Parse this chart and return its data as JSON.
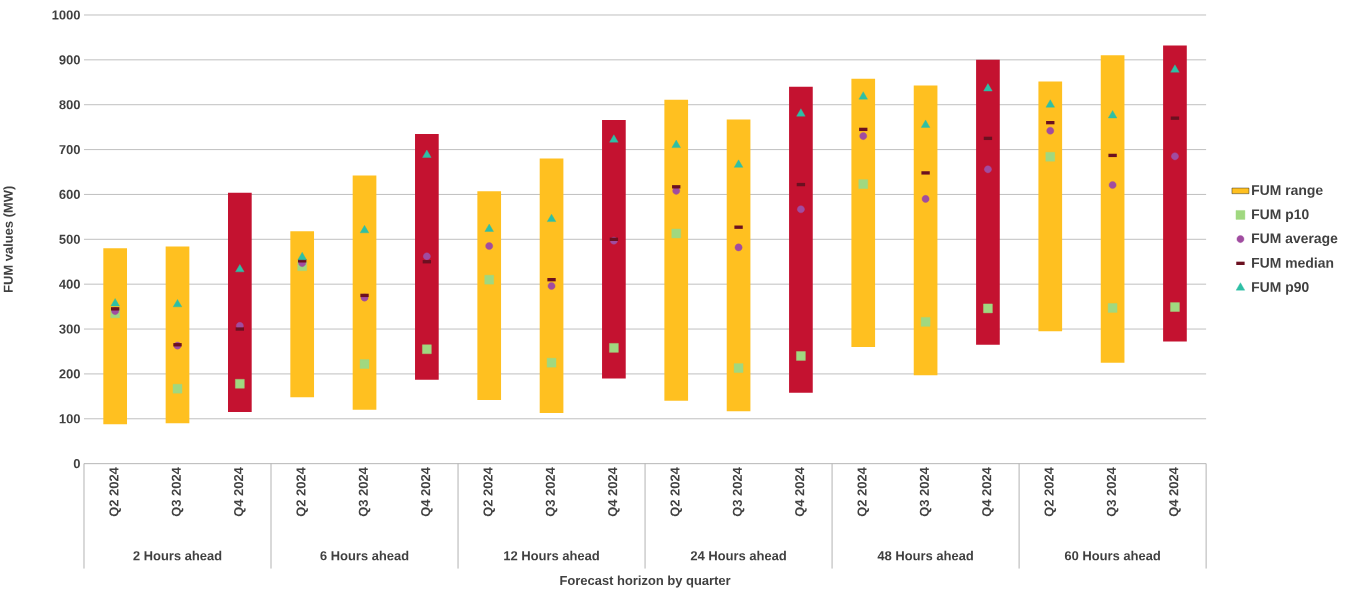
{
  "chart_data": {
    "type": "bar",
    "xlabel": "Forecast horizon by quarter",
    "ylabel": "FUM values (MW)",
    "categories": [
      "Q2 2024",
      "Q3 2024",
      "Q4 2024",
      "Q2 2024",
      "Q3 2024",
      "Q4 2024",
      "Q2 2024",
      "Q3 2024",
      "Q4 2024",
      "Q2 2024",
      "Q3 2024",
      "Q4 2024",
      "Q2 2024",
      "Q3 2024",
      "Q4 2024",
      "Q2 2024",
      "Q3 2024",
      "Q4 2024"
    ],
    "annotations": [
      "2 Hours ahead",
      "6 Hours ahead",
      "12 Hours ahead",
      "24 Hours ahead",
      "48 Hours ahead",
      "60 Hours ahead"
    ],
    "series": [
      {
        "name": "FUM range",
        "color": "#ffc020",
        "colors": [
          "#ffc020",
          "#ffc020",
          "#c41230",
          "#ffc020",
          "#ffc020",
          "#c41230",
          "#ffc020",
          "#ffc020",
          "#c41230",
          "#ffc020",
          "#ffc020",
          "#c41230",
          "#ffc020",
          "#ffc020",
          "#c41230",
          "#ffc020",
          "#ffc020",
          "#c41230"
        ],
        "base": [
          88,
          90,
          115,
          148,
          120,
          187,
          142,
          113,
          190,
          140,
          117,
          158,
          260,
          197,
          265,
          295,
          225,
          272
        ],
        "values": [
          392,
          394,
          489,
          370,
          522,
          548,
          465,
          567,
          576,
          671,
          650,
          682,
          598,
          646,
          635,
          557,
          685,
          660
        ]
      },
      {
        "name": "FUM p10",
        "type": "scatter",
        "marker": "square",
        "color": "#a0d880",
        "values": [
          335,
          167,
          178,
          440,
          222,
          255,
          410,
          225,
          258,
          513,
          213,
          240,
          623,
          316,
          346,
          684,
          347,
          349
        ]
      },
      {
        "name": "FUM average",
        "type": "scatter",
        "marker": "circle",
        "color": "#a04ca0",
        "values": [
          340,
          263,
          307,
          447,
          370,
          462,
          485,
          396,
          497,
          608,
          482,
          567,
          730,
          590,
          656,
          742,
          621,
          685
        ]
      },
      {
        "name": "FUM median",
        "type": "scatter",
        "color": "#6b1020",
        "values": [
          345,
          265,
          300,
          452,
          375,
          450,
          null,
          410,
          500,
          617,
          527,
          622,
          745,
          648,
          725,
          760,
          687,
          770
        ]
      },
      {
        "name": "FUM p90",
        "type": "scatter",
        "marker": "triangle",
        "color": "#2ebfa5",
        "values": [
          357,
          355,
          433,
          460,
          520,
          688,
          523,
          545,
          722,
          710,
          666,
          780,
          818,
          755,
          836,
          800,
          776,
          878
        ]
      }
    ],
    "ylim": [
      0,
      1000
    ],
    "yticks": [
      0,
      100,
      200,
      300,
      400,
      500,
      600,
      700,
      800,
      900,
      1000
    ],
    "grid": "y",
    "legend": "right"
  }
}
